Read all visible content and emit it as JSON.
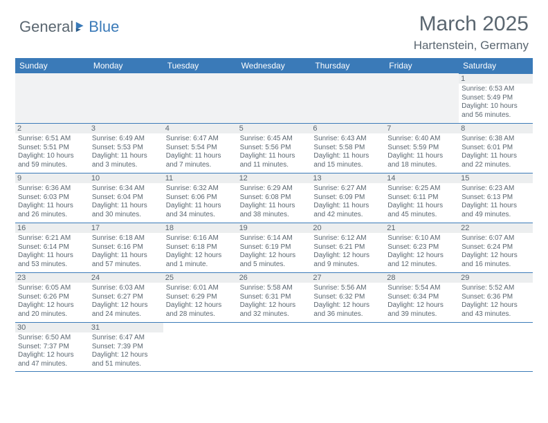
{
  "logo": {
    "general": "General",
    "blue": "Blue"
  },
  "title": "March 2025",
  "location": "Hartenstein, Germany",
  "dayHeaders": [
    "Sunday",
    "Monday",
    "Tuesday",
    "Wednesday",
    "Thursday",
    "Friday",
    "Saturday"
  ],
  "colors": {
    "headerBg": "#3a7ab8",
    "text": "#5a6670",
    "dayNumBg": "#eceeef",
    "emptyBg": "#f1f2f3"
  },
  "weeks": [
    [
      {
        "n": "",
        "empty": true
      },
      {
        "n": "",
        "empty": true
      },
      {
        "n": "",
        "empty": true
      },
      {
        "n": "",
        "empty": true
      },
      {
        "n": "",
        "empty": true
      },
      {
        "n": "",
        "empty": true
      },
      {
        "n": "1",
        "sr": "Sunrise: 6:53 AM",
        "ss": "Sunset: 5:49 PM",
        "d1": "Daylight: 10 hours",
        "d2": "and 56 minutes."
      }
    ],
    [
      {
        "n": "2",
        "sr": "Sunrise: 6:51 AM",
        "ss": "Sunset: 5:51 PM",
        "d1": "Daylight: 10 hours",
        "d2": "and 59 minutes."
      },
      {
        "n": "3",
        "sr": "Sunrise: 6:49 AM",
        "ss": "Sunset: 5:53 PM",
        "d1": "Daylight: 11 hours",
        "d2": "and 3 minutes."
      },
      {
        "n": "4",
        "sr": "Sunrise: 6:47 AM",
        "ss": "Sunset: 5:54 PM",
        "d1": "Daylight: 11 hours",
        "d2": "and 7 minutes."
      },
      {
        "n": "5",
        "sr": "Sunrise: 6:45 AM",
        "ss": "Sunset: 5:56 PM",
        "d1": "Daylight: 11 hours",
        "d2": "and 11 minutes."
      },
      {
        "n": "6",
        "sr": "Sunrise: 6:43 AM",
        "ss": "Sunset: 5:58 PM",
        "d1": "Daylight: 11 hours",
        "d2": "and 15 minutes."
      },
      {
        "n": "7",
        "sr": "Sunrise: 6:40 AM",
        "ss": "Sunset: 5:59 PM",
        "d1": "Daylight: 11 hours",
        "d2": "and 18 minutes."
      },
      {
        "n": "8",
        "sr": "Sunrise: 6:38 AM",
        "ss": "Sunset: 6:01 PM",
        "d1": "Daylight: 11 hours",
        "d2": "and 22 minutes."
      }
    ],
    [
      {
        "n": "9",
        "sr": "Sunrise: 6:36 AM",
        "ss": "Sunset: 6:03 PM",
        "d1": "Daylight: 11 hours",
        "d2": "and 26 minutes."
      },
      {
        "n": "10",
        "sr": "Sunrise: 6:34 AM",
        "ss": "Sunset: 6:04 PM",
        "d1": "Daylight: 11 hours",
        "d2": "and 30 minutes."
      },
      {
        "n": "11",
        "sr": "Sunrise: 6:32 AM",
        "ss": "Sunset: 6:06 PM",
        "d1": "Daylight: 11 hours",
        "d2": "and 34 minutes."
      },
      {
        "n": "12",
        "sr": "Sunrise: 6:29 AM",
        "ss": "Sunset: 6:08 PM",
        "d1": "Daylight: 11 hours",
        "d2": "and 38 minutes."
      },
      {
        "n": "13",
        "sr": "Sunrise: 6:27 AM",
        "ss": "Sunset: 6:09 PM",
        "d1": "Daylight: 11 hours",
        "d2": "and 42 minutes."
      },
      {
        "n": "14",
        "sr": "Sunrise: 6:25 AM",
        "ss": "Sunset: 6:11 PM",
        "d1": "Daylight: 11 hours",
        "d2": "and 45 minutes."
      },
      {
        "n": "15",
        "sr": "Sunrise: 6:23 AM",
        "ss": "Sunset: 6:13 PM",
        "d1": "Daylight: 11 hours",
        "d2": "and 49 minutes."
      }
    ],
    [
      {
        "n": "16",
        "sr": "Sunrise: 6:21 AM",
        "ss": "Sunset: 6:14 PM",
        "d1": "Daylight: 11 hours",
        "d2": "and 53 minutes."
      },
      {
        "n": "17",
        "sr": "Sunrise: 6:18 AM",
        "ss": "Sunset: 6:16 PM",
        "d1": "Daylight: 11 hours",
        "d2": "and 57 minutes."
      },
      {
        "n": "18",
        "sr": "Sunrise: 6:16 AM",
        "ss": "Sunset: 6:18 PM",
        "d1": "Daylight: 12 hours",
        "d2": "and 1 minute."
      },
      {
        "n": "19",
        "sr": "Sunrise: 6:14 AM",
        "ss": "Sunset: 6:19 PM",
        "d1": "Daylight: 12 hours",
        "d2": "and 5 minutes."
      },
      {
        "n": "20",
        "sr": "Sunrise: 6:12 AM",
        "ss": "Sunset: 6:21 PM",
        "d1": "Daylight: 12 hours",
        "d2": "and 9 minutes."
      },
      {
        "n": "21",
        "sr": "Sunrise: 6:10 AM",
        "ss": "Sunset: 6:23 PM",
        "d1": "Daylight: 12 hours",
        "d2": "and 12 minutes."
      },
      {
        "n": "22",
        "sr": "Sunrise: 6:07 AM",
        "ss": "Sunset: 6:24 PM",
        "d1": "Daylight: 12 hours",
        "d2": "and 16 minutes."
      }
    ],
    [
      {
        "n": "23",
        "sr": "Sunrise: 6:05 AM",
        "ss": "Sunset: 6:26 PM",
        "d1": "Daylight: 12 hours",
        "d2": "and 20 minutes."
      },
      {
        "n": "24",
        "sr": "Sunrise: 6:03 AM",
        "ss": "Sunset: 6:27 PM",
        "d1": "Daylight: 12 hours",
        "d2": "and 24 minutes."
      },
      {
        "n": "25",
        "sr": "Sunrise: 6:01 AM",
        "ss": "Sunset: 6:29 PM",
        "d1": "Daylight: 12 hours",
        "d2": "and 28 minutes."
      },
      {
        "n": "26",
        "sr": "Sunrise: 5:58 AM",
        "ss": "Sunset: 6:31 PM",
        "d1": "Daylight: 12 hours",
        "d2": "and 32 minutes."
      },
      {
        "n": "27",
        "sr": "Sunrise: 5:56 AM",
        "ss": "Sunset: 6:32 PM",
        "d1": "Daylight: 12 hours",
        "d2": "and 36 minutes."
      },
      {
        "n": "28",
        "sr": "Sunrise: 5:54 AM",
        "ss": "Sunset: 6:34 PM",
        "d1": "Daylight: 12 hours",
        "d2": "and 39 minutes."
      },
      {
        "n": "29",
        "sr": "Sunrise: 5:52 AM",
        "ss": "Sunset: 6:36 PM",
        "d1": "Daylight: 12 hours",
        "d2": "and 43 minutes."
      }
    ],
    [
      {
        "n": "30",
        "sr": "Sunrise: 6:50 AM",
        "ss": "Sunset: 7:37 PM",
        "d1": "Daylight: 12 hours",
        "d2": "and 47 minutes."
      },
      {
        "n": "31",
        "sr": "Sunrise: 6:47 AM",
        "ss": "Sunset: 7:39 PM",
        "d1": "Daylight: 12 hours",
        "d2": "and 51 minutes."
      },
      {
        "n": "",
        "trailing": true
      },
      {
        "n": "",
        "trailing": true
      },
      {
        "n": "",
        "trailing": true
      },
      {
        "n": "",
        "trailing": true
      },
      {
        "n": "",
        "trailing": true
      }
    ]
  ]
}
